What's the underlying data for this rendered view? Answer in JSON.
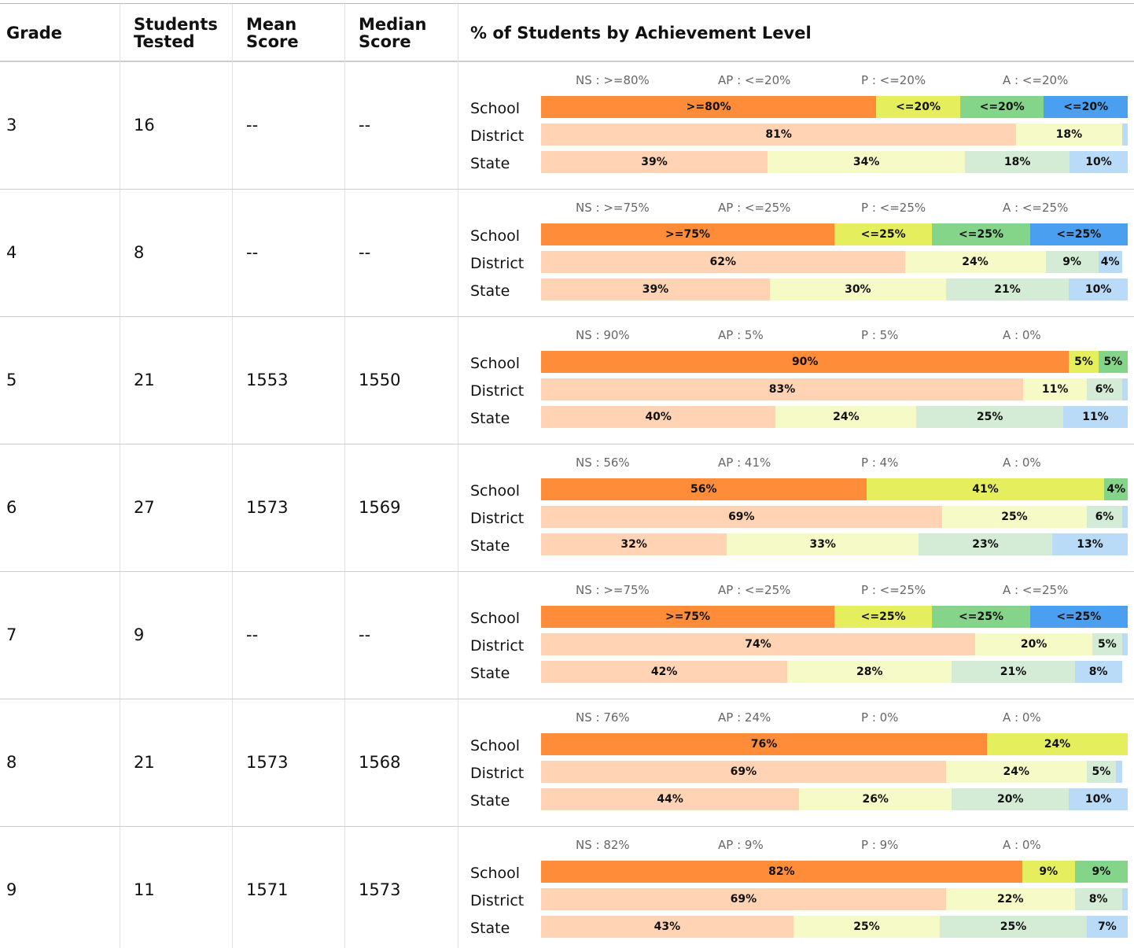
{
  "table": {
    "columns": [
      "Grade",
      "Students Tested",
      "Mean Score",
      "Median Score",
      "% of Students by Achievement Level"
    ],
    "bar_labels": [
      "School",
      "District",
      "State"
    ],
    "school_colors": [
      "#ff8c38",
      "#e5ee5c",
      "#84d48a",
      "#4a9ff0"
    ],
    "other_colors": [
      "#ffd3b4",
      "#f5fac6",
      "#d4ecd6",
      "#b9dbf8"
    ],
    "rows": [
      {
        "grade": 3,
        "tested": 16,
        "mean": "--",
        "median": "--",
        "levels": [
          "NS : >=80%",
          "AP : <=20%",
          "P : <=20%",
          "A : <=20%"
        ],
        "bars": [
          {
            "values": [
              80,
              20,
              20,
              20
            ],
            "value_labels": [
              ">=80%",
              "<=20%",
              "<=20%",
              "<=20%"
            ]
          },
          {
            "values": [
              81,
              18,
              0,
              1
            ],
            "value_labels": [
              "81%",
              "18%",
              null,
              null
            ]
          },
          {
            "values": [
              39,
              34,
              18,
              10
            ],
            "value_labels": [
              "39%",
              "34%",
              "18%",
              "10%"
            ]
          }
        ]
      },
      {
        "grade": 4,
        "tested": 8,
        "mean": "--",
        "median": "--",
        "levels": [
          "NS : >=75%",
          "AP : <=25%",
          "P : <=25%",
          "A : <=25%"
        ],
        "bars": [
          {
            "values": [
              75,
              25,
              25,
              25
            ],
            "value_labels": [
              ">=75%",
              "<=25%",
              "<=25%",
              "<=25%"
            ]
          },
          {
            "values": [
              62,
              24,
              9,
              4
            ],
            "value_labels": [
              "62%",
              "24%",
              "9%",
              "4%"
            ]
          },
          {
            "values": [
              39,
              30,
              21,
              10
            ],
            "value_labels": [
              "39%",
              "30%",
              "21%",
              "10%"
            ]
          }
        ]
      },
      {
        "grade": 5,
        "tested": 21,
        "mean": 1553,
        "median": 1550,
        "levels": [
          "NS : 90%",
          "AP : 5%",
          "P : 5%",
          "A : 0%"
        ],
        "bars": [
          {
            "values": [
              90,
              5,
              5,
              0
            ],
            "value_labels": [
              "90%",
              "5%",
              "5%",
              null
            ]
          },
          {
            "values": [
              83,
              11,
              6,
              1
            ],
            "value_labels": [
              "83%",
              "11%",
              "6%",
              null
            ]
          },
          {
            "values": [
              40,
              24,
              25,
              11
            ],
            "value_labels": [
              "40%",
              "24%",
              "25%",
              "11%"
            ]
          }
        ]
      },
      {
        "grade": 6,
        "tested": 27,
        "mean": 1573,
        "median": 1569,
        "levels": [
          "NS : 56%",
          "AP : 41%",
          "P : 4%",
          "A : 0%"
        ],
        "bars": [
          {
            "values": [
              56,
              41,
              4,
              0
            ],
            "value_labels": [
              "56%",
              "41%",
              "4%",
              null
            ]
          },
          {
            "values": [
              69,
              25,
              6,
              1
            ],
            "value_labels": [
              "69%",
              "25%",
              "6%",
              null
            ]
          },
          {
            "values": [
              32,
              33,
              23,
              13
            ],
            "value_labels": [
              "32%",
              "33%",
              "23%",
              "13%"
            ]
          }
        ]
      },
      {
        "grade": 7,
        "tested": 9,
        "mean": "--",
        "median": "--",
        "levels": [
          "NS : >=75%",
          "AP : <=25%",
          "P : <=25%",
          "A : <=25%"
        ],
        "bars": [
          {
            "values": [
              75,
              25,
              25,
              25
            ],
            "value_labels": [
              ">=75%",
              "<=25%",
              "<=25%",
              "<=25%"
            ]
          },
          {
            "values": [
              74,
              20,
              5,
              1
            ],
            "value_labels": [
              "74%",
              "20%",
              "5%",
              null
            ]
          },
          {
            "values": [
              42,
              28,
              21,
              8
            ],
            "value_labels": [
              "42%",
              "28%",
              "21%",
              "8%"
            ]
          }
        ]
      },
      {
        "grade": 8,
        "tested": 21,
        "mean": 1573,
        "median": 1568,
        "levels": [
          "NS : 76%",
          "AP : 24%",
          "P : 0%",
          "A : 0%"
        ],
        "bars": [
          {
            "values": [
              76,
              24,
              0,
              0
            ],
            "value_labels": [
              "76%",
              "24%",
              null,
              null
            ]
          },
          {
            "values": [
              69,
              24,
              5,
              1
            ],
            "value_labels": [
              "69%",
              "24%",
              "5%",
              null
            ]
          },
          {
            "values": [
              44,
              26,
              20,
              10
            ],
            "value_labels": [
              "44%",
              "26%",
              "20%",
              "10%"
            ]
          }
        ]
      },
      {
        "grade": 9,
        "tested": 11,
        "mean": 1571,
        "median": 1573,
        "levels": [
          "NS : 82%",
          "AP : 9%",
          "P : 9%",
          "A : 0%"
        ],
        "bars": [
          {
            "values": [
              82,
              9,
              9,
              0
            ],
            "value_labels": [
              "82%",
              "9%",
              "9%",
              null
            ]
          },
          {
            "values": [
              69,
              22,
              8,
              1
            ],
            "value_labels": [
              "69%",
              "22%",
              "8%",
              null
            ]
          },
          {
            "values": [
              43,
              25,
              25,
              7
            ],
            "value_labels": [
              "43%",
              "25%",
              "25%",
              "7%"
            ]
          }
        ]
      }
    ]
  }
}
